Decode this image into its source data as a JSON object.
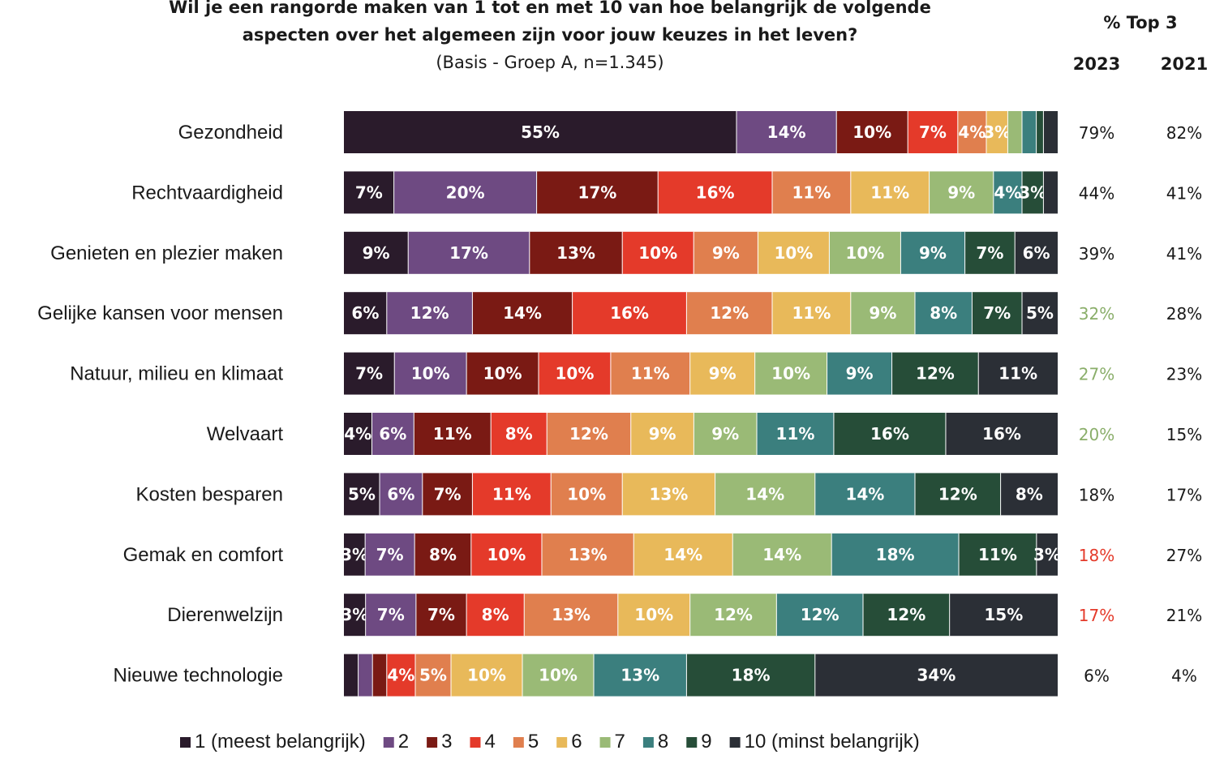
{
  "chart_data": {
    "type": "bar",
    "orientation": "horizontal-stacked",
    "title": "Wil je een rangorde maken van 1 tot en met 10 van hoe belangrijk de volgende aspecten over het algemeen zijn voor jouw keuzes in het leven?",
    "title_lines": [
      "Wil je een rangorde maken van 1 tot en met 10 van hoe belangrijk de volgende",
      "aspecten over het algemeen zijn voor jouw keuzes in het leven?"
    ],
    "subtitle": "(Basis - Groep A, n=1.345)",
    "top3_header": "% Top 3",
    "year_headers": [
      "2023",
      "2021"
    ],
    "categories": [
      "Gezondheid",
      "Rechtvaardigheid",
      "Genieten en plezier maken",
      "Gelijke kansen voor mensen",
      "Natuur, milieu en klimaat",
      "Welvaart",
      "Kosten besparen",
      "Gemak en comfort",
      "Dierenwelzijn",
      "Nieuwe technologie"
    ],
    "series": [
      {
        "name": "1 (meest belangrijk)",
        "color": "#2a1b2b",
        "values": [
          55,
          7,
          9,
          6,
          7,
          4,
          5,
          3,
          3,
          2
        ]
      },
      {
        "name": "2",
        "color": "#6e4a82",
        "values": [
          14,
          20,
          17,
          12,
          10,
          6,
          6,
          7,
          7,
          2
        ]
      },
      {
        "name": "3",
        "color": "#7a1a14",
        "values": [
          10,
          17,
          13,
          14,
          10,
          11,
          7,
          8,
          7,
          2
        ]
      },
      {
        "name": "4",
        "color": "#e43a2a",
        "values": [
          7,
          16,
          10,
          16,
          10,
          8,
          11,
          10,
          8,
          4
        ]
      },
      {
        "name": "5",
        "color": "#e07f4e",
        "values": [
          4,
          11,
          9,
          12,
          11,
          12,
          10,
          13,
          13,
          5
        ]
      },
      {
        "name": "6",
        "color": "#e8b95a",
        "values": [
          3,
          11,
          10,
          11,
          9,
          9,
          13,
          14,
          10,
          10
        ]
      },
      {
        "name": "7",
        "color": "#9aba76",
        "values": [
          2,
          9,
          10,
          9,
          10,
          9,
          14,
          14,
          12,
          10
        ]
      },
      {
        "name": "8",
        "color": "#3b7f7e",
        "values": [
          2,
          4,
          9,
          8,
          9,
          11,
          14,
          18,
          12,
          13
        ]
      },
      {
        "name": "9",
        "color": "#264d38",
        "values": [
          1,
          3,
          7,
          7,
          12,
          16,
          12,
          11,
          12,
          18
        ]
      },
      {
        "name": "10 (minst belangrijk)",
        "color": "#2b2f36",
        "values": [
          2,
          2,
          6,
          5,
          11,
          16,
          8,
          3,
          15,
          34
        ]
      }
    ],
    "top3": {
      "2023": [
        "79%",
        "44%",
        "39%",
        "32%",
        "27%",
        "20%",
        "18%",
        "18%",
        "17%",
        "6%"
      ],
      "2021": [
        "82%",
        "41%",
        "41%",
        "28%",
        "23%",
        "15%",
        "17%",
        "27%",
        "21%",
        "4%"
      ]
    },
    "top3_2023_colors": [
      "#1a1a1a",
      "#1a1a1a",
      "#1a1a1a",
      "#8aae6a",
      "#8aae6a",
      "#8aae6a",
      "#1a1a1a",
      "#e43a2a",
      "#e43a2a",
      "#1a1a1a"
    ],
    "xlim": [
      0,
      100
    ],
    "legend_position": "bottom"
  }
}
